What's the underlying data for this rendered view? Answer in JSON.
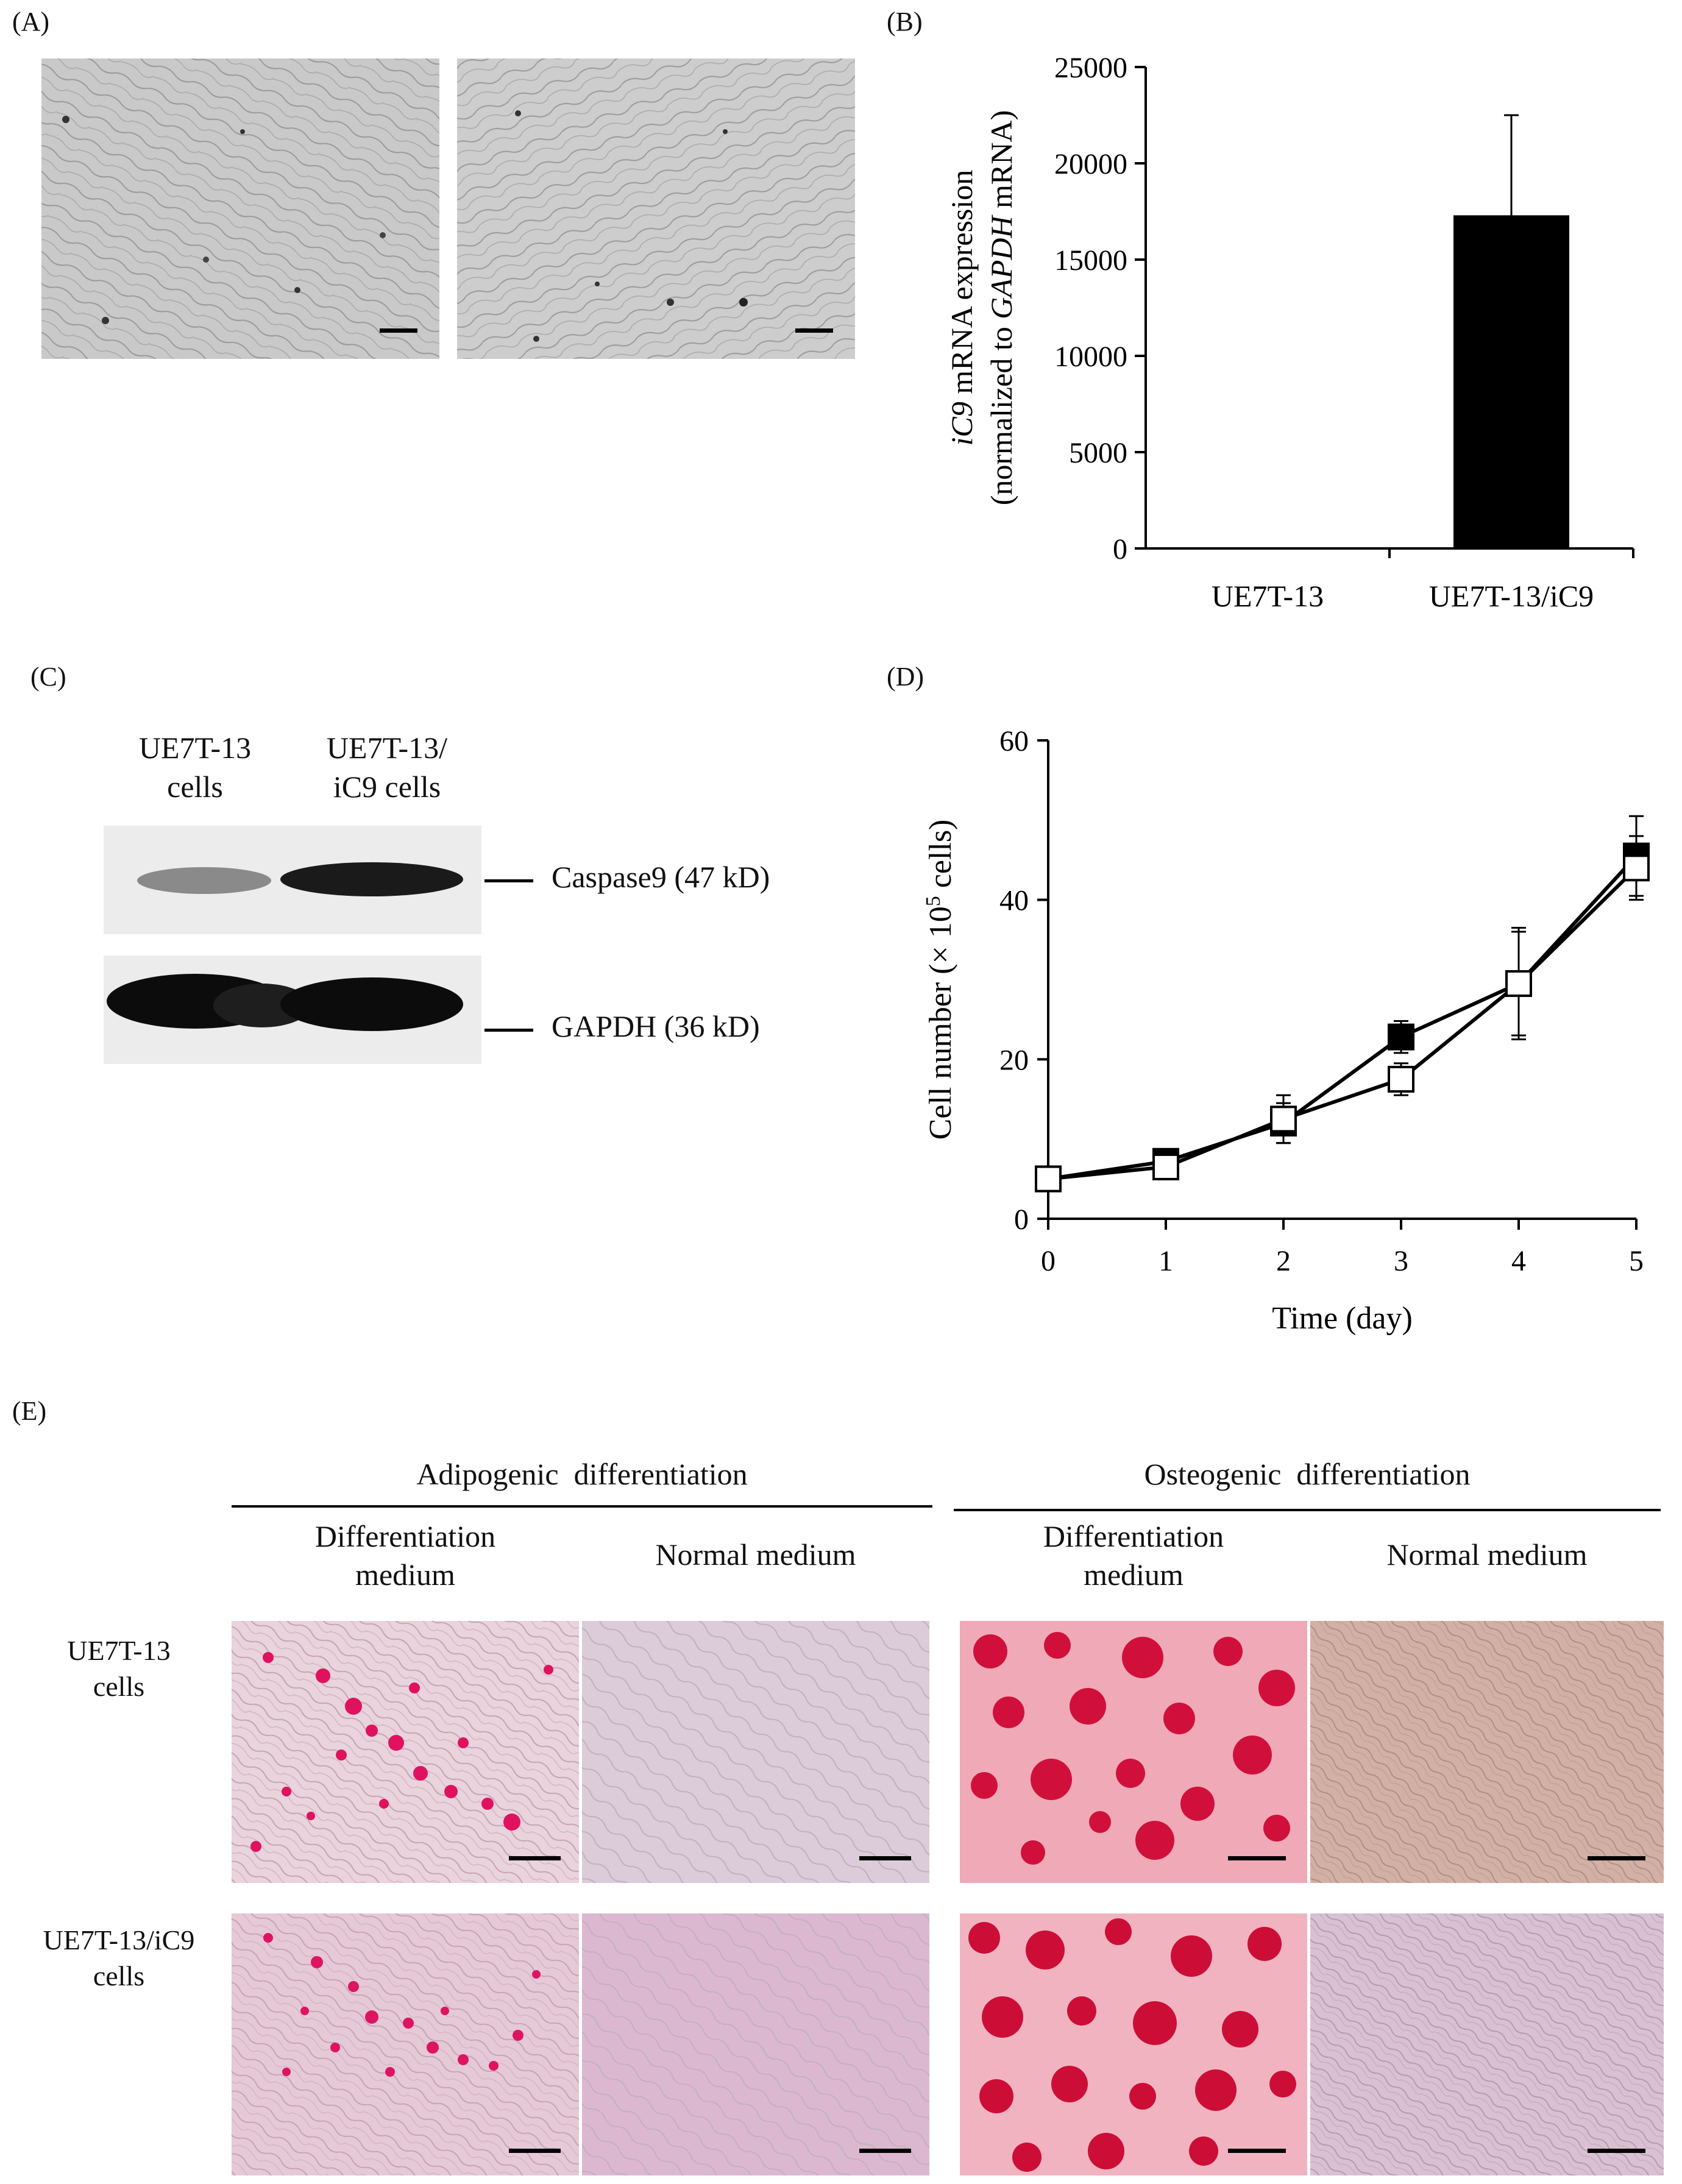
{
  "panels": {
    "a": {
      "letter": "(A)"
    },
    "b": {
      "letter": "(B)"
    },
    "c": {
      "letter": "(C)"
    },
    "d": {
      "letter": "(D)"
    },
    "e": {
      "letter": "(E)"
    }
  },
  "chart_data": [
    {
      "type": "bar",
      "panel": "B",
      "categories": [
        "UE7T-13",
        "UE7T-13/iC9"
      ],
      "values": [
        0,
        17300
      ],
      "error_bars": [
        0,
        5200
      ],
      "ylabel_line1_italic": "iC9",
      "ylabel_line1_rest": " mRNA expression",
      "ylabel_line2_pre": "(normalized to ",
      "ylabel_line2_italic": "GAPDH",
      "ylabel_line2_post": " mRNA)",
      "ylim": [
        0,
        25000
      ],
      "yticks": [
        "0",
        "5000",
        "10000",
        "15000",
        "20000",
        "25000"
      ],
      "bar_color": "#000000",
      "grid": false
    },
    {
      "type": "line",
      "panel": "D",
      "x": [
        0,
        1,
        2,
        3,
        4,
        5
      ],
      "xticks": [
        "0",
        "1",
        "2",
        "3",
        "4",
        "5"
      ],
      "series": [
        {
          "marker": "filled-square",
          "values": [
            5,
            7.2,
            12,
            22.8,
            29.5,
            45.5
          ],
          "errors": [
            0.6,
            0.8,
            2.5,
            2.0,
            7.0,
            5.0
          ]
        },
        {
          "marker": "open-square",
          "values": [
            5,
            6.5,
            12.5,
            17.5,
            29.5,
            44
          ],
          "errors": [
            0.6,
            0.7,
            3.0,
            2.0,
            6.5,
            4.0
          ]
        }
      ],
      "xlabel": "Time (day)",
      "ylabel_pre": "Cell number (× 10",
      "ylabel_sup": "5",
      "ylabel_post": " cells)",
      "ylim": [
        0,
        60
      ],
      "yticks": [
        "0",
        "20",
        "40",
        "60"
      ],
      "grid": false
    }
  ],
  "blot": {
    "lane1": [
      "UE7T-13",
      "cells"
    ],
    "lane2": [
      "UE7T-13/",
      "iC9 cells"
    ],
    "band1_label": "Caspase9 (47 kD)",
    "band2_label": "GAPDH (36 kD)"
  },
  "differentiation": {
    "adipogenic": "Adipogenic  differentiation",
    "osteogenic": "Osteogenic  differentiation",
    "diff_medium": [
      "Differentiation",
      "medium"
    ],
    "normal_medium": "Normal medium",
    "row1": [
      "UE7T-13",
      "cells"
    ],
    "row2": [
      "UE7T-13/iC9",
      "cells"
    ]
  }
}
